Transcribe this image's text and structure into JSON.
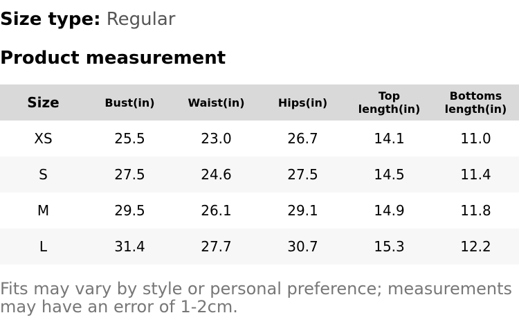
{
  "size_type": {
    "label": "Size type:",
    "value": "Regular"
  },
  "section_title": "Product measurement",
  "table": {
    "header": [
      "Size",
      "Bust(in)",
      "Waist(in)",
      "Hips(in)",
      "Top length(in)",
      "Bottoms length(in)"
    ],
    "rows": [
      [
        "XS",
        "25.5",
        "23.0",
        "26.7",
        "14.1",
        "11.0"
      ],
      [
        "S",
        "27.5",
        "24.6",
        "27.5",
        "14.5",
        "11.4"
      ],
      [
        "M",
        "29.5",
        "26.1",
        "29.1",
        "14.9",
        "11.8"
      ],
      [
        "L",
        "31.4",
        "27.7",
        "30.7",
        "15.3",
        "12.2"
      ]
    ]
  },
  "note": "Fits may vary by style or personal preference; measurements may have an error of 1-2cm."
}
